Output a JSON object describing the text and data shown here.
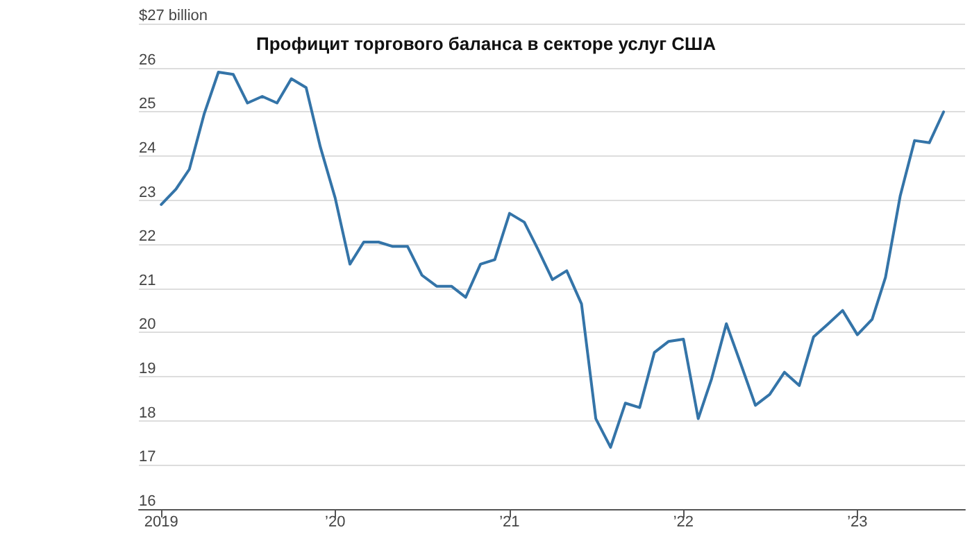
{
  "chart_data": {
    "type": "line",
    "title": "Профицит торгового баланса в секторе услуг США",
    "x": [
      "2019-01",
      "2019-02",
      "2019-03",
      "2019-04",
      "2019-05",
      "2019-06",
      "2019-07",
      "2019-08",
      "2019-09",
      "2019-10",
      "2019-11",
      "2019-12",
      "2020-01",
      "2020-02",
      "2020-03",
      "2020-04",
      "2020-05",
      "2020-06",
      "2020-07",
      "2020-08",
      "2020-09",
      "2020-10",
      "2020-11",
      "2020-12",
      "2021-01",
      "2021-02",
      "2021-03",
      "2021-04",
      "2021-05",
      "2021-06",
      "2021-07",
      "2021-08",
      "2021-09",
      "2021-10",
      "2021-11",
      "2021-12",
      "2022-01",
      "2022-02",
      "2022-03",
      "2022-04",
      "2022-05",
      "2022-06",
      "2022-07",
      "2022-08",
      "2022-09",
      "2022-10",
      "2022-11",
      "2022-12",
      "2023-01",
      "2023-02",
      "2023-03",
      "2023-04",
      "2023-05",
      "2023-06",
      "2023-07"
    ],
    "series": [
      {
        "color": "#3474a8",
        "values": [
          22.9,
          23.25,
          23.7,
          24.95,
          25.9,
          25.85,
          25.2,
          25.35,
          25.2,
          25.75,
          25.55,
          24.2,
          23.05,
          21.55,
          22.05,
          22.05,
          21.95,
          21.95,
          21.3,
          21.05,
          21.05,
          20.8,
          21.55,
          21.65,
          22.7,
          22.5,
          21.9,
          21.2,
          21.4,
          20.65,
          18.05,
          17.4,
          18.4,
          18.3,
          19.55,
          19.8,
          19.85,
          18.05,
          18.95,
          20.2,
          19.3,
          18.35,
          18.6,
          19.1,
          18.8,
          19.9,
          20.2,
          20.5,
          19.95,
          20.3,
          21.25,
          23.1,
          24.35,
          24.3,
          25.0
        ]
      }
    ],
    "xlim": [
      "2018-11-15",
      "2023-08-15"
    ],
    "xticks": [
      {
        "value": "2019-01",
        "label": "2019"
      },
      {
        "value": "2020-01",
        "label": "’20"
      },
      {
        "value": "2021-01",
        "label": "’21"
      },
      {
        "value": "2022-01",
        "label": "’22"
      },
      {
        "value": "2023-01",
        "label": "’23"
      }
    ],
    "ylim": [
      16,
      27
    ],
    "yticks": [
      16,
      17,
      18,
      19,
      20,
      21,
      22,
      23,
      24,
      25,
      26,
      {
        "value": 27,
        "label": "$27 billion"
      }
    ],
    "grid": "y",
    "marker": "none",
    "line_style": "solid"
  }
}
